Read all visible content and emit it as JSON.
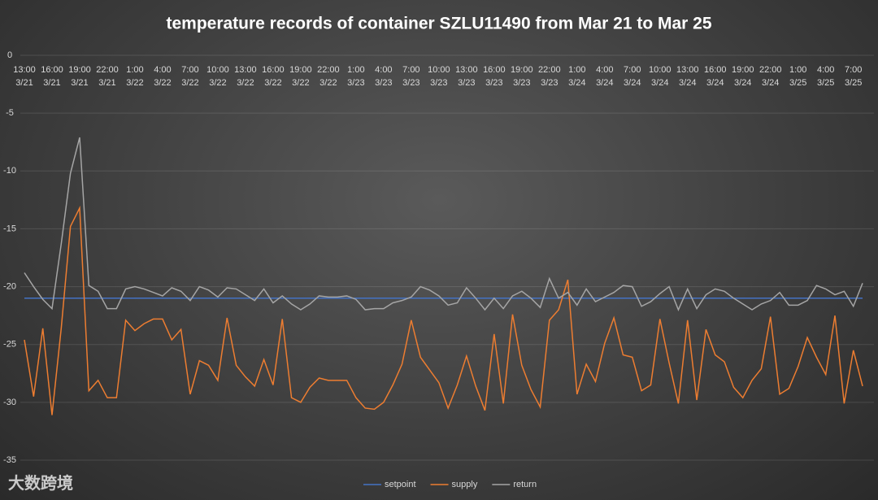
{
  "chart_data": {
    "type": "line",
    "title": "temperature records of container SZLU11490 from Mar 21 to Mar 25",
    "watermark": "大数跨境",
    "categories": [
      "13:00 3/21",
      null,
      null,
      "16:00 3/21",
      null,
      null,
      "19:00 3/21",
      null,
      null,
      "22:00 3/21",
      null,
      null,
      "1:00 3/22",
      null,
      null,
      "4:00 3/22",
      null,
      null,
      "7:00 3/22",
      null,
      null,
      "10:00 3/22",
      null,
      null,
      "13:00 3/22",
      null,
      null,
      "16:00 3/22",
      null,
      null,
      "19:00 3/22",
      null,
      null,
      "22:00 3/22",
      null,
      null,
      "1:00 3/23",
      null,
      null,
      "4:00 3/23",
      null,
      null,
      "7:00 3/23",
      null,
      null,
      "10:00 3/23",
      null,
      null,
      "13:00 3/23",
      null,
      null,
      "16:00 3/23",
      null,
      null,
      "19:00 3/23",
      null,
      null,
      "22:00 3/23",
      null,
      null,
      "1:00 3/24",
      null,
      null,
      "4:00 3/24",
      null,
      null,
      "7:00 3/24",
      null,
      null,
      "10:00 3/24",
      null,
      null,
      "13:00 3/24",
      null,
      null,
      "16:00 3/24",
      null,
      null,
      "19:00 3/24",
      null,
      null,
      "22:00 3/24",
      null,
      null,
      "1:00 3/25",
      null,
      null,
      "4:00 3/25",
      null,
      null,
      "7:00 3/25",
      null
    ],
    "series": [
      {
        "name": "setpoint",
        "color": "#4472c4",
        "values": [
          -21,
          -21,
          -21,
          -21,
          -21,
          -21,
          -21,
          -21,
          -21,
          -21,
          -21,
          -21,
          -21,
          -21,
          -21,
          -21,
          -21,
          -21,
          -21,
          -21,
          -21,
          -21,
          -21,
          -21,
          -21,
          -21,
          -21,
          -21,
          -21,
          -21,
          -21,
          -21,
          -21,
          -21,
          -21,
          -21,
          -21,
          -21,
          -21,
          -21,
          -21,
          -21,
          -21,
          -21,
          -21,
          -21,
          -21,
          -21,
          -21,
          -21,
          -21,
          -21,
          -21,
          -21,
          -21,
          -21,
          -21,
          -21,
          -21,
          -21,
          -21,
          -21,
          -21,
          -21,
          -21,
          -21,
          -21,
          -21,
          -21,
          -21,
          -21,
          -21,
          -21,
          -21,
          -21,
          -21,
          -21,
          -21,
          -21,
          -21,
          -21,
          -21,
          -21,
          -21,
          -21,
          -21,
          -21,
          -21,
          -21,
          -21,
          -21,
          -21
        ]
      },
      {
        "name": "supply",
        "color": "#ed7d31",
        "values": [
          -24.6,
          -29.5,
          -23.6,
          -31.1,
          -23.6,
          -14.8,
          -13.2,
          -29.0,
          -28.1,
          -29.6,
          -29.6,
          -22.9,
          -23.8,
          -23.2,
          -22.8,
          -22.8,
          -24.6,
          -23.7,
          -29.3,
          -26.4,
          -26.8,
          -28.1,
          -22.7,
          -26.8,
          -27.8,
          -28.6,
          -26.3,
          -28.5,
          -22.8,
          -29.6,
          -30.0,
          -28.7,
          -27.9,
          -28.1,
          -28.1,
          -28.1,
          -29.6,
          -30.5,
          -30.6,
          -30.0,
          -28.5,
          -26.7,
          -22.9,
          -26.1,
          -27.2,
          -28.3,
          -30.5,
          -28.5,
          -26.0,
          -28.6,
          -30.7,
          -24.1,
          -30.1,
          -22.4,
          -26.8,
          -28.9,
          -30.4,
          -22.9,
          -22.0,
          -19.4,
          -29.3,
          -26.7,
          -28.2,
          -24.9,
          -22.7,
          -25.9,
          -26.1,
          -29.0,
          -28.5,
          -22.8,
          -26.6,
          -30.1,
          -22.9,
          -29.8,
          -23.7,
          -25.9,
          -26.5,
          -28.7,
          -29.6,
          -28.1,
          -27.1,
          -22.6,
          -29.3,
          -28.8,
          -26.9,
          -24.4,
          -26.1,
          -27.6,
          -22.5,
          -30.1,
          -25.5,
          -28.6
        ]
      },
      {
        "name": "return",
        "color": "#a5a5a5",
        "values": [
          -18.8,
          -20.0,
          -21.1,
          -21.9,
          -16.3,
          -10.2,
          -7.1,
          -19.9,
          -20.4,
          -21.9,
          -21.9,
          -20.2,
          -20.0,
          -20.2,
          -20.5,
          -20.8,
          -20.1,
          -20.4,
          -21.2,
          -20.0,
          -20.3,
          -20.9,
          -20.1,
          -20.2,
          -20.7,
          -21.2,
          -20.2,
          -21.4,
          -20.8,
          -21.5,
          -22.0,
          -21.5,
          -20.8,
          -20.9,
          -20.9,
          -20.8,
          -21.1,
          -22.0,
          -21.9,
          -21.9,
          -21.4,
          -21.2,
          -20.9,
          -20.0,
          -20.3,
          -20.8,
          -21.6,
          -21.4,
          -20.1,
          -21.0,
          -22.0,
          -21.0,
          -21.9,
          -20.8,
          -20.4,
          -21.0,
          -21.8,
          -19.3,
          -21.0,
          -20.5,
          -21.6,
          -20.2,
          -21.3,
          -20.9,
          -20.5,
          -19.9,
          -20.0,
          -21.7,
          -21.3,
          -20.6,
          -20.0,
          -22.0,
          -20.2,
          -21.9,
          -20.7,
          -20.2,
          -20.4,
          -21.0,
          -21.5,
          -22.0,
          -21.5,
          -21.2,
          -20.5,
          -21.6,
          -21.6,
          -21.2,
          -19.9,
          -20.2,
          -20.7,
          -20.4,
          -21.7,
          -19.7
        ]
      }
    ],
    "ylim": [
      -35,
      0
    ],
    "yticks": [
      0,
      -5,
      -10,
      -15,
      -20,
      -25,
      -30,
      -35
    ],
    "grid": true,
    "legend": "bottom"
  }
}
